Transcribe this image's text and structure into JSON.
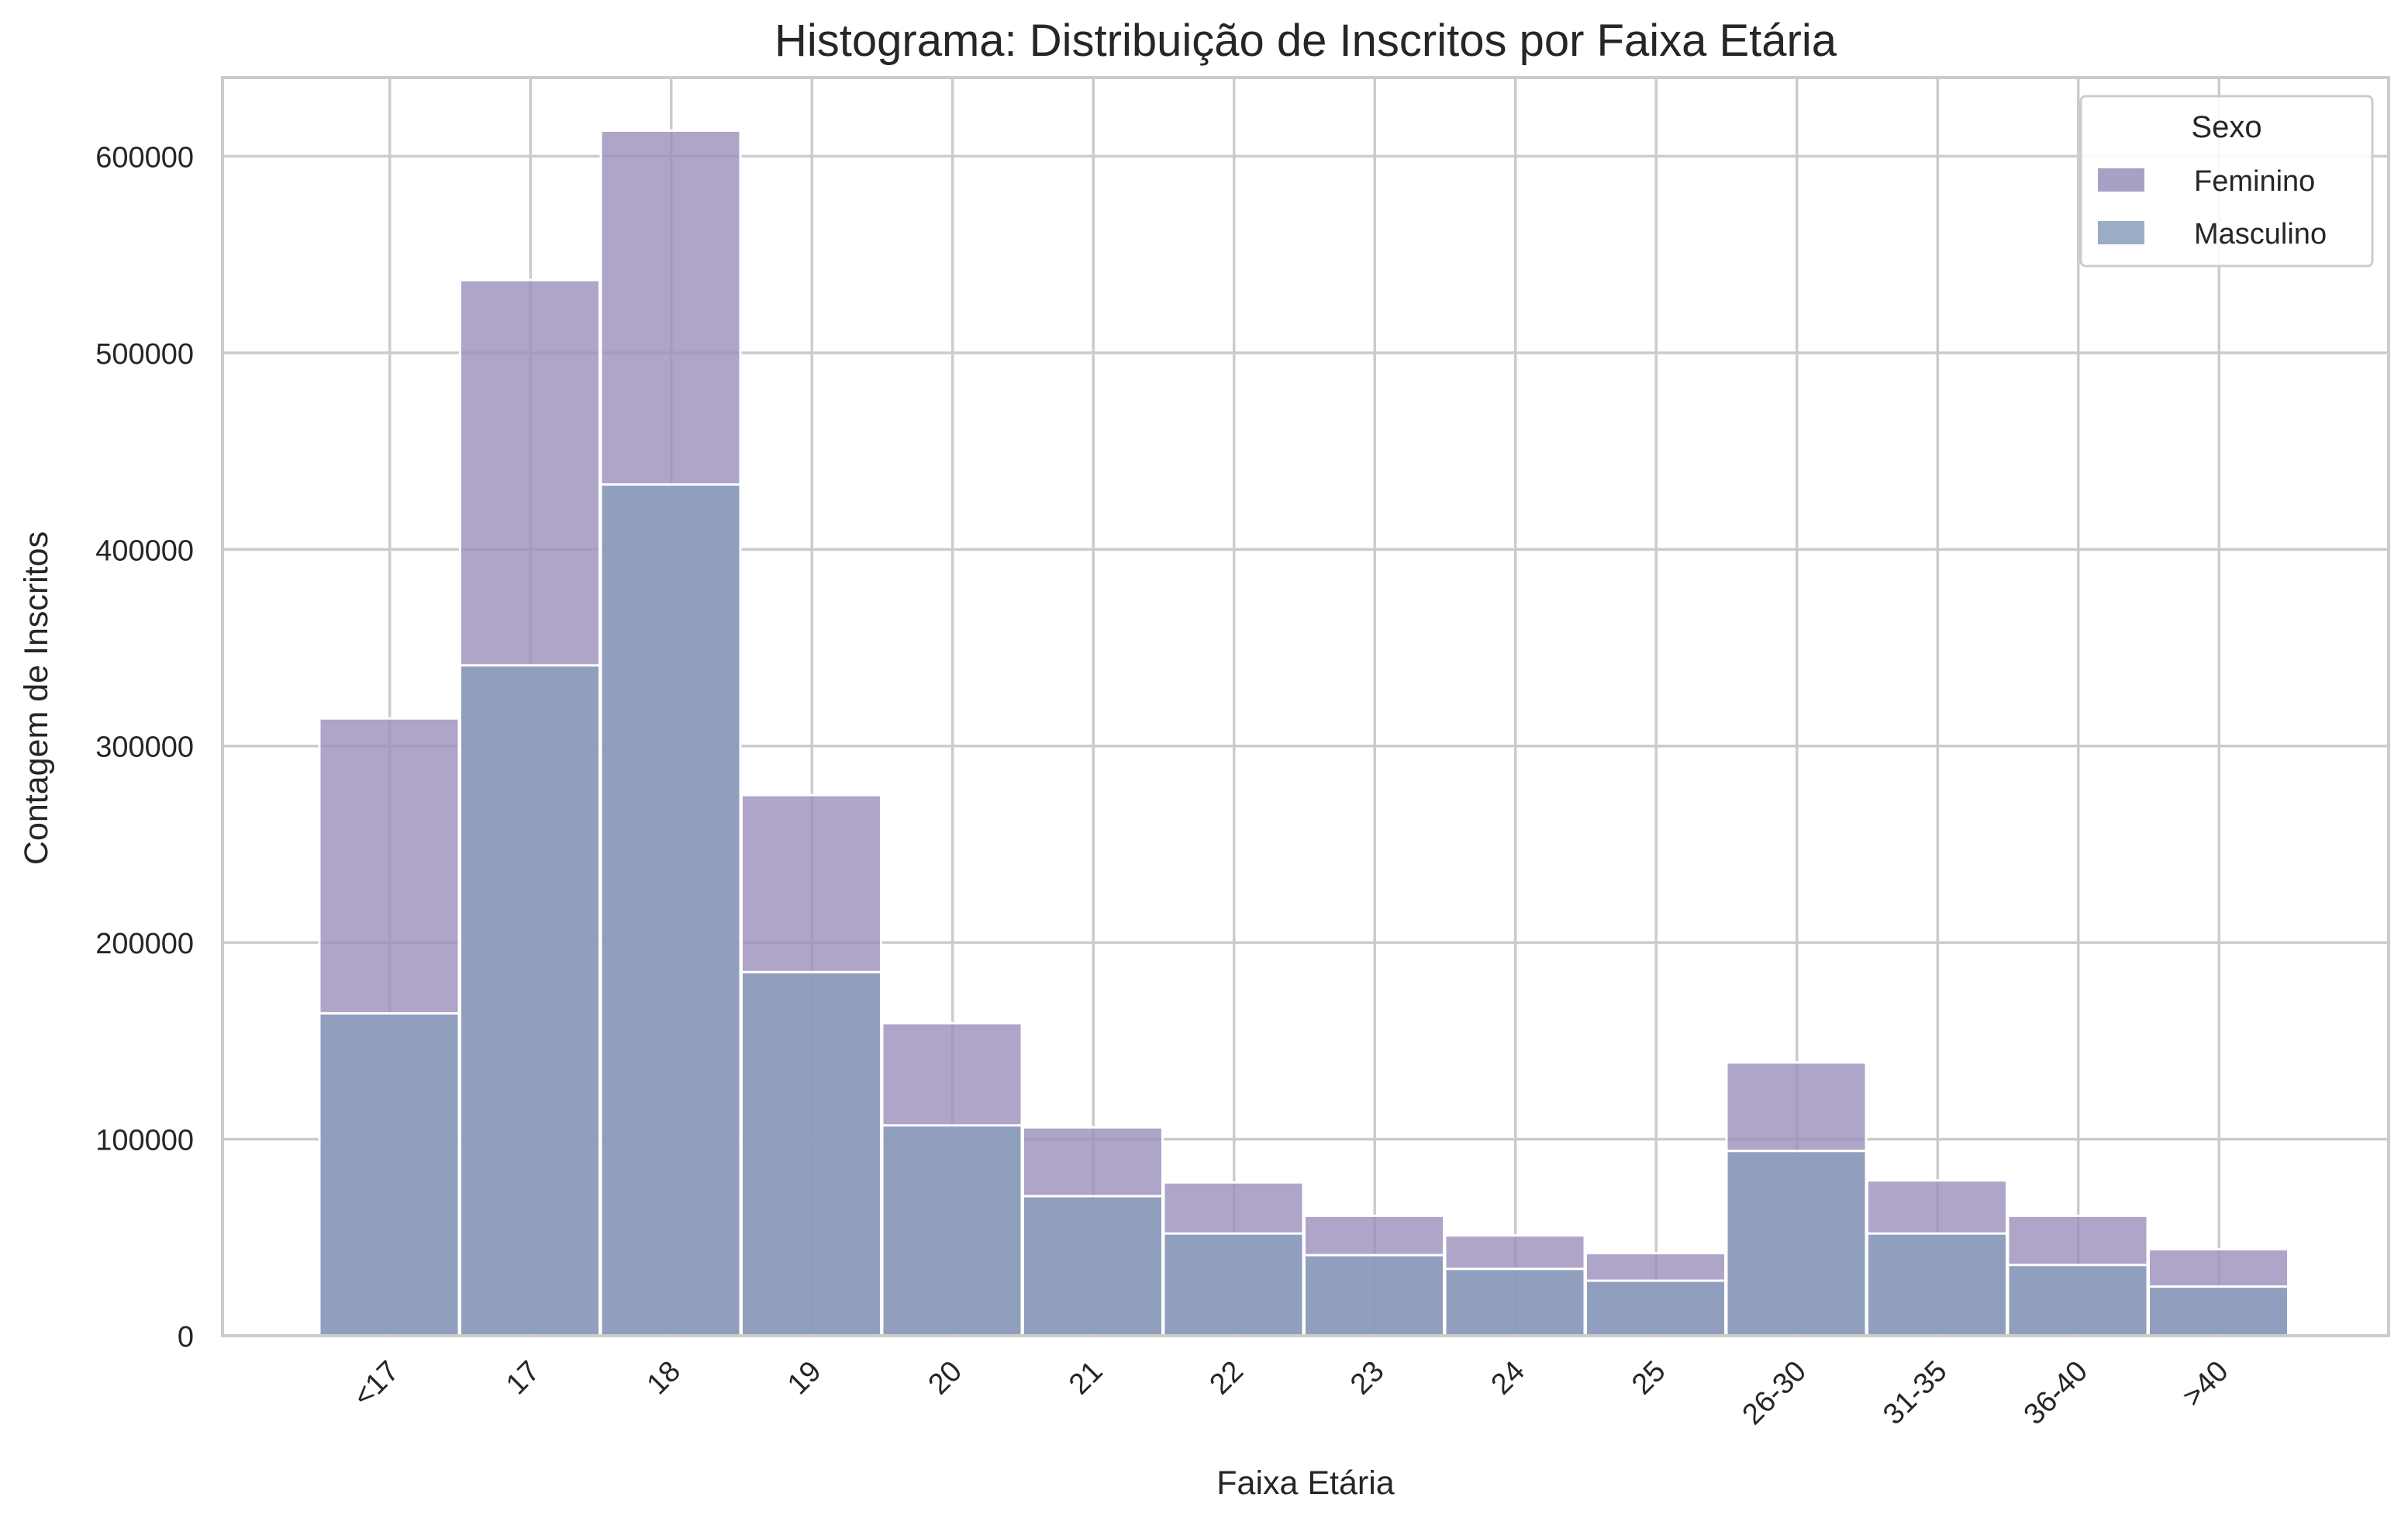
{
  "chart_data": {
    "type": "bar",
    "title": "Histograma: Distribuição de Inscritos por Faixa Etária",
    "xlabel": "Faixa Etária",
    "ylabel": "Contagem de Inscritos",
    "categories": [
      "<17",
      "17",
      "18",
      "19",
      "20",
      "21",
      "22",
      "23",
      "24",
      "25",
      "26-30",
      "31-35",
      "36-40",
      ">40"
    ],
    "series": [
      {
        "name": "Feminino",
        "color": "#9a8fbb",
        "values": [
          314000,
          537000,
          613000,
          275000,
          159000,
          106000,
          78000,
          61000,
          51000,
          42000,
          139000,
          79000,
          61000,
          44000
        ]
      },
      {
        "name": "Masculino",
        "color": "#8a9dbc",
        "values": [
          164000,
          341000,
          433000,
          185000,
          107000,
          71000,
          52000,
          41000,
          34000,
          28000,
          94000,
          52000,
          36000,
          25000
        ]
      }
    ],
    "ylim": [
      0,
      640000
    ],
    "yticks": [
      "0",
      "100000",
      "200000",
      "300000",
      "400000",
      "500000",
      "600000"
    ],
    "grid": true,
    "legend": {
      "title": "Sexo",
      "placement": "top-right"
    },
    "overlap_color": "#6f70a0"
  }
}
